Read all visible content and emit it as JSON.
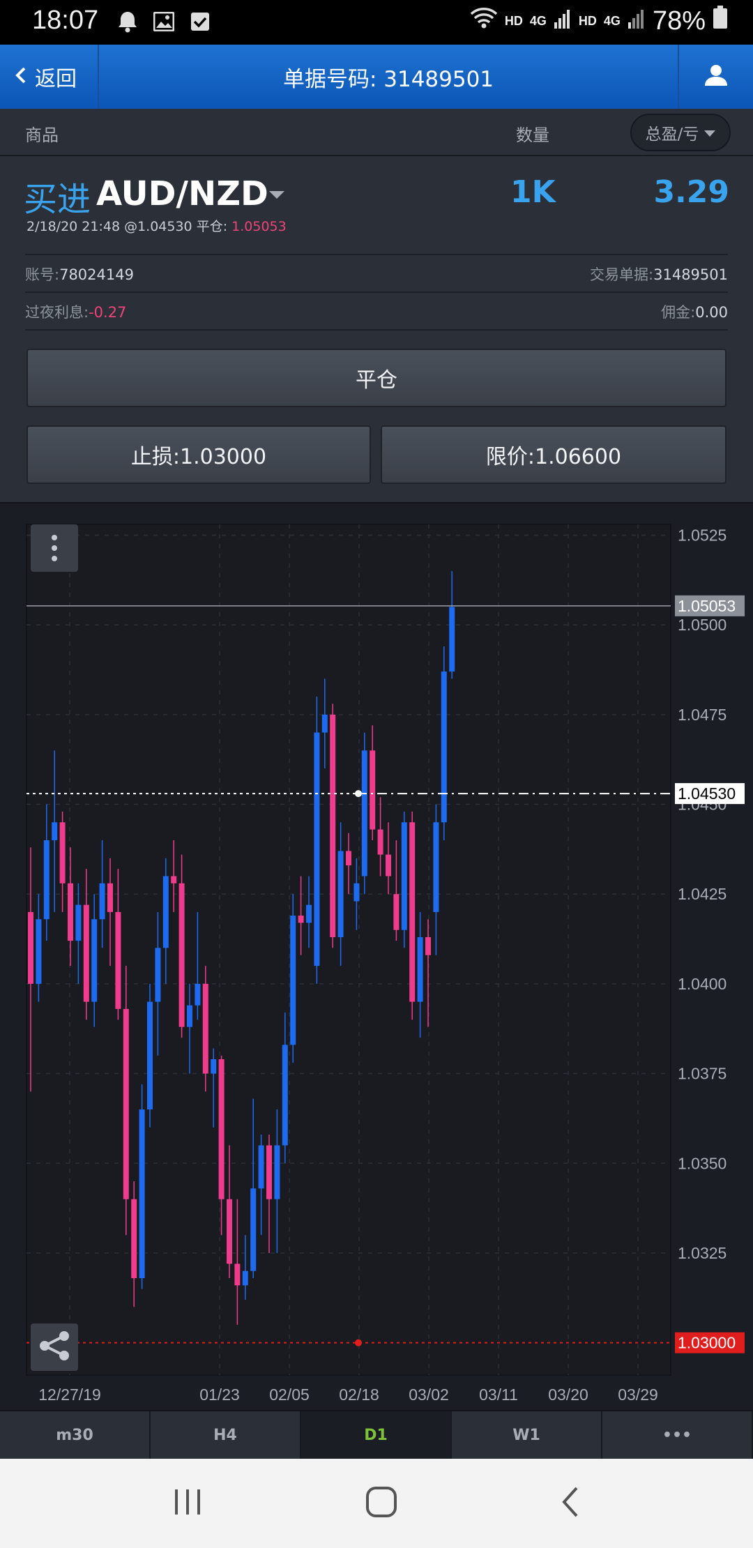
{
  "status": {
    "time": "18:07",
    "net1": "HD",
    "net2": "HD",
    "g1": "4G",
    "g2": "4G",
    "battery": "78%"
  },
  "header": {
    "back_label": "返回",
    "title": "单据号码: 31489501"
  },
  "columns": {
    "goods": "商品",
    "quantity": "数量",
    "pl_dropdown": "总盈/亏"
  },
  "order": {
    "side": "买进",
    "symbol": "AUD/NZD",
    "quantity": "1K",
    "profit": "3.29",
    "open_info": "2/18/20 21:48 @1.04530 平仓: ",
    "close_price": "1.05053",
    "account_label": "账号:",
    "account": "78024149",
    "ticket_label": "交易单据:",
    "ticket": "31489501",
    "swap_label": "过夜利息:",
    "swap": "-0.27",
    "commission_label": "佣金:",
    "commission": "0.00",
    "close_button": "平仓",
    "stop_loss_button": "止损:1.03000",
    "take_profit_button": "限价:1.06600"
  },
  "chart_data": {
    "type": "candlestick",
    "symbol": "AUD/NZD",
    "timeframe": "D1",
    "y_ticks": [
      "1.0525",
      "1.0500",
      "1.0475",
      "1.0450",
      "1.0425",
      "1.0400",
      "1.0375",
      "1.0350",
      "1.0325"
    ],
    "x_ticks": [
      "12/27/19",
      "01/23",
      "02/05",
      "02/18",
      "03/02",
      "03/11",
      "03/20",
      "03/29"
    ],
    "ylim": [
      1.0291,
      1.0528
    ],
    "current_price": "1.05053",
    "open_price": "1.04530",
    "stop_loss": "1.03000",
    "candles": [
      {
        "o": 1.042,
        "h": 1.0438,
        "l": 1.037,
        "c": 1.04
      },
      {
        "o": 1.04,
        "h": 1.0425,
        "l": 1.0395,
        "c": 1.0418
      },
      {
        "o": 1.0418,
        "h": 1.045,
        "l": 1.0412,
        "c": 1.044
      },
      {
        "o": 1.044,
        "h": 1.0465,
        "l": 1.042,
        "c": 1.0445
      },
      {
        "o": 1.0445,
        "h": 1.0448,
        "l": 1.042,
        "c": 1.0428
      },
      {
        "o": 1.0428,
        "h": 1.0438,
        "l": 1.0405,
        "c": 1.0412
      },
      {
        "o": 1.0412,
        "h": 1.0428,
        "l": 1.04,
        "c": 1.0422
      },
      {
        "o": 1.0422,
        "h": 1.0432,
        "l": 1.039,
        "c": 1.0395
      },
      {
        "o": 1.0395,
        "h": 1.0425,
        "l": 1.0388,
        "c": 1.0418
      },
      {
        "o": 1.0418,
        "h": 1.044,
        "l": 1.041,
        "c": 1.0428
      },
      {
        "o": 1.0428,
        "h": 1.0435,
        "l": 1.0405,
        "c": 1.042
      },
      {
        "o": 1.042,
        "h": 1.0432,
        "l": 1.039,
        "c": 1.0393
      },
      {
        "o": 1.0393,
        "h": 1.0405,
        "l": 1.033,
        "c": 1.034
      },
      {
        "o": 1.034,
        "h": 1.0345,
        "l": 1.031,
        "c": 1.0318
      },
      {
        "o": 1.0318,
        "h": 1.0372,
        "l": 1.0315,
        "c": 1.0365
      },
      {
        "o": 1.0365,
        "h": 1.04,
        "l": 1.036,
        "c": 1.0395
      },
      {
        "o": 1.0395,
        "h": 1.042,
        "l": 1.038,
        "c": 1.041
      },
      {
        "o": 1.041,
        "h": 1.0435,
        "l": 1.04,
        "c": 1.043
      },
      {
        "o": 1.043,
        "h": 1.044,
        "l": 1.042,
        "c": 1.0428
      },
      {
        "o": 1.0428,
        "h": 1.0436,
        "l": 1.0385,
        "c": 1.0388
      },
      {
        "o": 1.0388,
        "h": 1.04,
        "l": 1.0375,
        "c": 1.0394
      },
      {
        "o": 1.0394,
        "h": 1.042,
        "l": 1.039,
        "c": 1.04
      },
      {
        "o": 1.04,
        "h": 1.0405,
        "l": 1.037,
        "c": 1.0375
      },
      {
        "o": 1.0375,
        "h": 1.0382,
        "l": 1.036,
        "c": 1.0379
      },
      {
        "o": 1.0379,
        "h": 1.038,
        "l": 1.033,
        "c": 1.034
      },
      {
        "o": 1.034,
        "h": 1.0355,
        "l": 1.0318,
        "c": 1.0322
      },
      {
        "o": 1.0322,
        "h": 1.034,
        "l": 1.0305,
        "c": 1.0316
      },
      {
        "o": 1.0316,
        "h": 1.033,
        "l": 1.0312,
        "c": 1.032
      },
      {
        "o": 1.032,
        "h": 1.0368,
        "l": 1.0318,
        "c": 1.0343
      },
      {
        "o": 1.0343,
        "h": 1.0358,
        "l": 1.033,
        "c": 1.0355
      },
      {
        "o": 1.0355,
        "h": 1.0358,
        "l": 1.0325,
        "c": 1.034
      },
      {
        "o": 1.034,
        "h": 1.0365,
        "l": 1.0325,
        "c": 1.0355
      },
      {
        "o": 1.0355,
        "h": 1.0392,
        "l": 1.035,
        "c": 1.0383
      },
      {
        "o": 1.0383,
        "h": 1.0425,
        "l": 1.0378,
        "c": 1.0419
      },
      {
        "o": 1.0419,
        "h": 1.043,
        "l": 1.0408,
        "c": 1.0417
      },
      {
        "o": 1.0417,
        "h": 1.043,
        "l": 1.041,
        "c": 1.0422
      },
      {
        "o": 1.0405,
        "h": 1.048,
        "l": 1.04,
        "c": 1.047
      },
      {
        "o": 1.047,
        "h": 1.0485,
        "l": 1.046,
        "c": 1.0475
      },
      {
        "o": 1.0475,
        "h": 1.0478,
        "l": 1.041,
        "c": 1.0413
      },
      {
        "o": 1.0413,
        "h": 1.0445,
        "l": 1.0405,
        "c": 1.0437
      },
      {
        "o": 1.0437,
        "h": 1.0442,
        "l": 1.0425,
        "c": 1.0433
      },
      {
        "o": 1.0423,
        "h": 1.0435,
        "l": 1.0415,
        "c": 1.0428
      },
      {
        "o": 1.043,
        "h": 1.047,
        "l": 1.0425,
        "c": 1.0465
      },
      {
        "o": 1.0465,
        "h": 1.0472,
        "l": 1.044,
        "c": 1.0443
      },
      {
        "o": 1.0443,
        "h": 1.0452,
        "l": 1.043,
        "c": 1.0436
      },
      {
        "o": 1.0436,
        "h": 1.0445,
        "l": 1.0425,
        "c": 1.043
      },
      {
        "o": 1.0425,
        "h": 1.044,
        "l": 1.0412,
        "c": 1.0415
      },
      {
        "o": 1.0415,
        "h": 1.0448,
        "l": 1.041,
        "c": 1.0445
      },
      {
        "o": 1.0445,
        "h": 1.0448,
        "l": 1.039,
        "c": 1.0395
      },
      {
        "o": 1.0395,
        "h": 1.042,
        "l": 1.0385,
        "c": 1.0413
      },
      {
        "o": 1.0413,
        "h": 1.0418,
        "l": 1.0388,
        "c": 1.0408
      },
      {
        "o": 1.042,
        "h": 1.045,
        "l": 1.0408,
        "c": 1.0445
      },
      {
        "o": 1.0445,
        "h": 1.0494,
        "l": 1.044,
        "c": 1.0487
      },
      {
        "o": 1.0487,
        "h": 1.0515,
        "l": 1.0485,
        "c": 1.0505
      }
    ]
  },
  "timeframes": [
    "m30",
    "H4",
    "D1",
    "W1",
    "•••"
  ],
  "colors": {
    "bull": "#1e6bf0",
    "bear": "#f03c8c",
    "accent": "#3aa3ee",
    "stop": "#e01e1e",
    "active_tf": "#7fc23a"
  }
}
